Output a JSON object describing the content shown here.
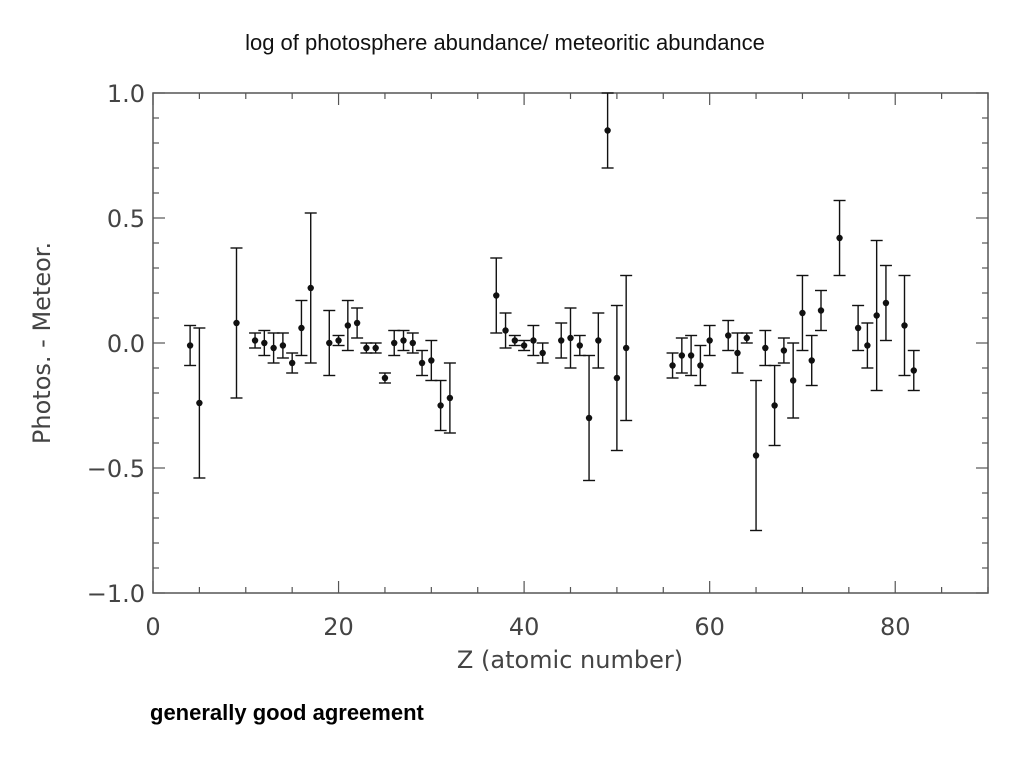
{
  "page": {
    "title": "log of photosphere abundance/ meteoritic abundance",
    "caption": "generally good agreement"
  },
  "chart_data": {
    "type": "scatter",
    "xlabel": "Z (atomic number)",
    "ylabel": "Photos. - Meteor.",
    "xlim": [
      0,
      90
    ],
    "ylim": [
      -1.0,
      1.0
    ],
    "xticks": [
      "0",
      "20",
      "40",
      "60",
      "80"
    ],
    "xtick_values": [
      0,
      20,
      40,
      60,
      80
    ],
    "yticks": [
      "1.0",
      "0.5",
      "0.0",
      "−0.5",
      "−1.0"
    ],
    "ytick_values": [
      1.0,
      0.5,
      0.0,
      -0.5,
      -1.0
    ],
    "grid": false,
    "legend": "none",
    "colors": {
      "marker": "#111111",
      "axis": "#555555"
    },
    "points": [
      {
        "x": 4,
        "y": -0.01,
        "err": 0.08
      },
      {
        "x": 5,
        "y": -0.24,
        "err": 0.3
      },
      {
        "x": 9,
        "y": 0.08,
        "err": 0.3
      },
      {
        "x": 11,
        "y": 0.01,
        "err": 0.03
      },
      {
        "x": 12,
        "y": 0.0,
        "err": 0.05
      },
      {
        "x": 13,
        "y": -0.02,
        "err": 0.06
      },
      {
        "x": 14,
        "y": -0.01,
        "err": 0.05
      },
      {
        "x": 15,
        "y": -0.08,
        "err": 0.04
      },
      {
        "x": 16,
        "y": 0.06,
        "err": 0.11
      },
      {
        "x": 17,
        "y": 0.22,
        "err": 0.3
      },
      {
        "x": 19,
        "y": 0.0,
        "err": 0.13
      },
      {
        "x": 20,
        "y": 0.01,
        "err": 0.02
      },
      {
        "x": 21,
        "y": 0.07,
        "err": 0.1
      },
      {
        "x": 22,
        "y": 0.08,
        "err": 0.06
      },
      {
        "x": 23,
        "y": -0.02,
        "err": 0.02
      },
      {
        "x": 24,
        "y": -0.02,
        "err": 0.02
      },
      {
        "x": 25,
        "y": -0.14,
        "err": 0.02
      },
      {
        "x": 26,
        "y": 0.0,
        "err": 0.05
      },
      {
        "x": 27,
        "y": 0.01,
        "err": 0.04
      },
      {
        "x": 28,
        "y": 0.0,
        "err": 0.04
      },
      {
        "x": 29,
        "y": -0.08,
        "err": 0.05
      },
      {
        "x": 30,
        "y": -0.07,
        "err": 0.08
      },
      {
        "x": 31,
        "y": -0.25,
        "err": 0.1
      },
      {
        "x": 32,
        "y": -0.22,
        "err": 0.14
      },
      {
        "x": 37,
        "y": 0.19,
        "err": 0.15
      },
      {
        "x": 38,
        "y": 0.05,
        "err": 0.07
      },
      {
        "x": 39,
        "y": 0.01,
        "err": 0.02
      },
      {
        "x": 40,
        "y": -0.01,
        "err": 0.02
      },
      {
        "x": 41,
        "y": 0.01,
        "err": 0.06
      },
      {
        "x": 42,
        "y": -0.04,
        "err": 0.04
      },
      {
        "x": 44,
        "y": 0.01,
        "err": 0.07
      },
      {
        "x": 45,
        "y": 0.02,
        "err": 0.12
      },
      {
        "x": 46,
        "y": -0.01,
        "err": 0.04
      },
      {
        "x": 47,
        "y": -0.3,
        "err": 0.25
      },
      {
        "x": 48,
        "y": 0.01,
        "err": 0.11
      },
      {
        "x": 49,
        "y": 0.85,
        "err": 0.15
      },
      {
        "x": 50,
        "y": -0.14,
        "err": 0.29
      },
      {
        "x": 51,
        "y": -0.02,
        "err": 0.29
      },
      {
        "x": 56,
        "y": -0.09,
        "err": 0.05
      },
      {
        "x": 57,
        "y": -0.05,
        "err": 0.07
      },
      {
        "x": 58,
        "y": -0.05,
        "err": 0.08
      },
      {
        "x": 59,
        "y": -0.09,
        "err": 0.08
      },
      {
        "x": 60,
        "y": 0.01,
        "err": 0.06
      },
      {
        "x": 62,
        "y": 0.03,
        "err": 0.06
      },
      {
        "x": 63,
        "y": -0.04,
        "err": 0.08
      },
      {
        "x": 64,
        "y": 0.02,
        "err": 0.02
      },
      {
        "x": 65,
        "y": -0.45,
        "err": 0.3
      },
      {
        "x": 66,
        "y": -0.02,
        "err": 0.07
      },
      {
        "x": 67,
        "y": -0.25,
        "err": 0.16
      },
      {
        "x": 68,
        "y": -0.03,
        "err": 0.05
      },
      {
        "x": 69,
        "y": -0.15,
        "err": 0.15
      },
      {
        "x": 70,
        "y": 0.12,
        "err": 0.15
      },
      {
        "x": 71,
        "y": -0.07,
        "err": 0.1
      },
      {
        "x": 72,
        "y": 0.13,
        "err": 0.08
      },
      {
        "x": 74,
        "y": 0.42,
        "err": 0.15
      },
      {
        "x": 76,
        "y": 0.06,
        "err": 0.09
      },
      {
        "x": 77,
        "y": -0.01,
        "err": 0.09
      },
      {
        "x": 78,
        "y": 0.11,
        "err": 0.3
      },
      {
        "x": 79,
        "y": 0.16,
        "err": 0.15
      },
      {
        "x": 81,
        "y": 0.07,
        "err": 0.2
      },
      {
        "x": 82,
        "y": -0.11,
        "err": 0.08
      }
    ]
  }
}
